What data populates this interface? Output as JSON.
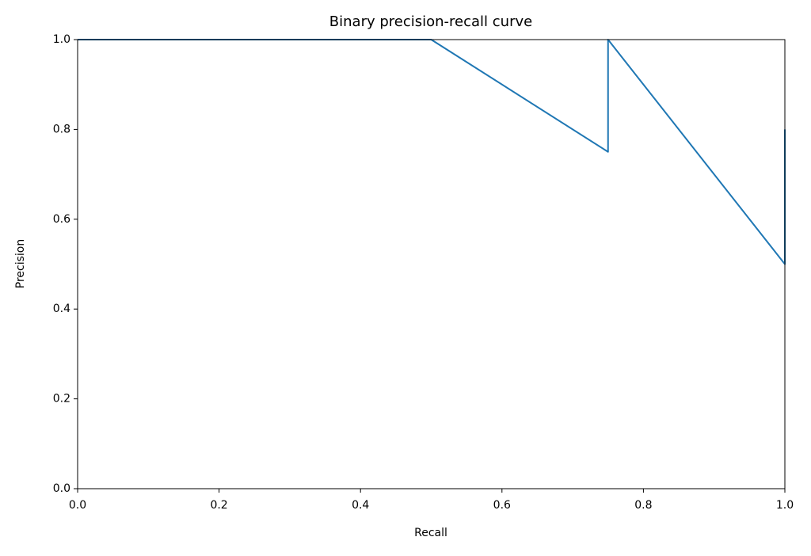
{
  "chart_data": {
    "type": "line",
    "title": "Binary precision-recall curve",
    "x_label": "Recall",
    "y_label": "Precision",
    "x": [
      0,
      0.5,
      0.75,
      0.75,
      1.0,
      1.0
    ],
    "series": [
      {
        "color": "#1f77b4",
        "values": [
          1.0,
          1.0,
          0.75,
          1.0,
          0.5,
          0.8
        ]
      }
    ],
    "xlim": [
      0,
      1
    ],
    "ylim": [
      0,
      1
    ],
    "xticks": [
      {
        "value": 0,
        "label": "0.0"
      },
      0.2,
      0.4,
      0.6,
      0.8,
      {
        "value": 1,
        "label": "1.0"
      }
    ],
    "yticks": [
      {
        "value": 0,
        "label": "0.0"
      },
      0.2,
      0.4,
      0.6,
      0.8,
      {
        "value": 1,
        "label": "1.0"
      }
    ],
    "grid": false
  }
}
